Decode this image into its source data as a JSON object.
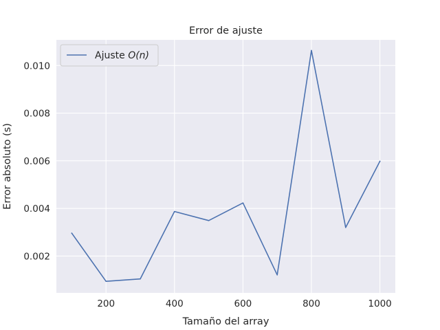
{
  "chart_data": {
    "type": "line",
    "title": "Error de ajuste",
    "xlabel": "Tamaño del array",
    "ylabel": "Error absoluto (s)",
    "x": [
      100,
      200,
      300,
      400,
      500,
      600,
      700,
      800,
      900,
      1000
    ],
    "series": [
      {
        "name": "Ajuste O(n)",
        "legend_prefix": "Ajuste ",
        "legend_math": "O(n)",
        "color": "#4c72b0",
        "values": [
          0.00296,
          0.00094,
          0.00104,
          0.00387,
          0.00349,
          0.00423,
          0.00121,
          0.01063,
          0.0032,
          0.00598
        ]
      }
    ],
    "xticks": [
      200,
      400,
      600,
      800,
      1000
    ],
    "xtick_labels": [
      "200",
      "400",
      "600",
      "800",
      "1000"
    ],
    "yticks": [
      0.002,
      0.004,
      0.006,
      0.008,
      0.01
    ],
    "ytick_labels": [
      "0.002",
      "0.004",
      "0.006",
      "0.008",
      "0.010"
    ],
    "xlim": [
      55,
      1045
    ],
    "ylim": [
      0.000455,
      0.011075
    ],
    "grid": true,
    "legend_position": "upper-left",
    "style": {
      "background": "#eaeaf2",
      "grid_color": "#ffffff"
    }
  }
}
